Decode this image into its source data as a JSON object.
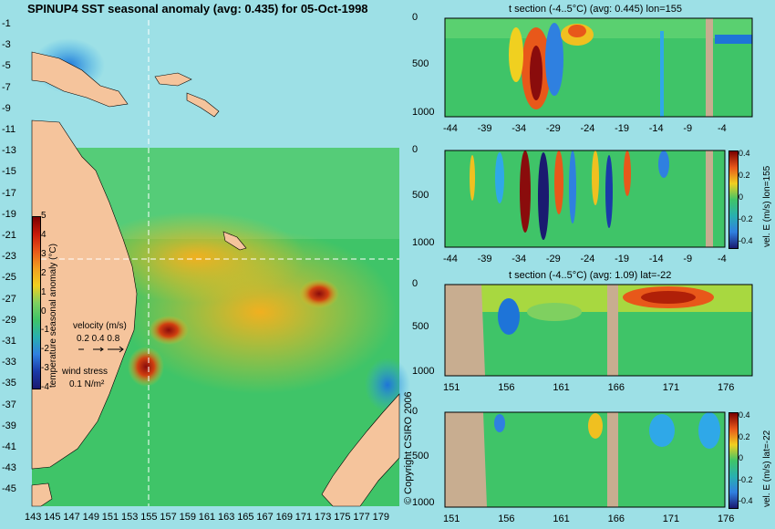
{
  "colors": {
    "background": "#9de0e6",
    "land": "#f5c49c",
    "land_section": "#c8ad90",
    "field_green": "#3fc468",
    "warm": "#f0c020",
    "hot": "#d04010",
    "very_hot": "#8a0c0c",
    "cool": "#2fa8e8",
    "cold": "#1a3aa8"
  },
  "map": {
    "title": "SPINUP4 SST seasonal anomaly (avg: 0.435) for 05-Oct-1998",
    "lat_labels": [
      "-1",
      "-3",
      "-5",
      "-7",
      "-9",
      "-11",
      "-13",
      "-15",
      "-17",
      "-19",
      "-21",
      "-23",
      "-25",
      "-27",
      "-29",
      "-31",
      "-33",
      "-35",
      "-37",
      "-39",
      "-41",
      "-43",
      "-45"
    ],
    "lon_labels": [
      "143",
      "145",
      "147",
      "149",
      "151",
      "153",
      "155",
      "157",
      "159",
      "161",
      "163",
      "165",
      "167",
      "169",
      "171",
      "173",
      "175",
      "177",
      "179"
    ],
    "colorbar_ticks": [
      "5",
      "4",
      "3",
      "2",
      "1",
      "0",
      "-1",
      "-2",
      "-3",
      "-4"
    ],
    "colorbar_label": "temperature seasonal anomaly (°C)",
    "velocity_label": "velocity (m/s)",
    "velocity_scale": "0.2 0.4 0.8",
    "wind_label": "wind stress",
    "wind_scale": "0.1 N/m²",
    "copyright": "© Copyright CSIRO 2006"
  },
  "panels": [
    {
      "title": "t section (-4..5°C) (avg: 0.445) lon=155",
      "y_ticks": [
        "0",
        "500",
        "1000"
      ],
      "x_ticks": [
        "-44",
        "-39",
        "-34",
        "-29",
        "-24",
        "-19",
        "-14",
        "-9",
        "-4"
      ]
    },
    {
      "title": "",
      "y_ticks": [
        "0",
        "500",
        "1000"
      ],
      "x_ticks": [
        "-44",
        "-39",
        "-34",
        "-29",
        "-24",
        "-19",
        "-14",
        "-9",
        "-4"
      ],
      "colorbar_label": "vel. E (m/s) lon=155",
      "colorbar_ticks": [
        "0.4",
        "0.2",
        "0",
        "-0.2",
        "-0.4"
      ]
    },
    {
      "title": "t section (-4..5°C) (avg: 1.09) lat=-22",
      "y_ticks": [
        "0",
        "500",
        "1000"
      ],
      "x_ticks": [
        "151",
        "156",
        "161",
        "166",
        "171",
        "176"
      ]
    },
    {
      "title": "",
      "y_ticks": [
        "0",
        "500",
        "1000"
      ],
      "x_ticks": [
        "151",
        "156",
        "161",
        "166",
        "171",
        "176"
      ],
      "colorbar_label": "vel. E (m/s) lat=-22",
      "colorbar_ticks": [
        "0.4",
        "0.2",
        "0",
        "-0.2",
        "-0.4"
      ]
    }
  ],
  "chart_data": [
    {
      "type": "heatmap",
      "title": "SPINUP4 SST seasonal anomaly (avg: 0.435) for 05-Oct-1998",
      "x": [
        143,
        145,
        147,
        149,
        151,
        153,
        155,
        157,
        159,
        161,
        163,
        165,
        167,
        169,
        171,
        173,
        175,
        177,
        179
      ],
      "y": [
        -1,
        -3,
        -5,
        -7,
        -9,
        -11,
        -13,
        -15,
        -17,
        -19,
        -21,
        -23,
        -25,
        -27,
        -29,
        -31,
        -33,
        -35,
        -37,
        -39,
        -41,
        -43,
        -45
      ],
      "colorbar_label": "temperature seasonal anomaly (°C)",
      "zlim": [
        -4,
        5
      ],
      "average": 0.435,
      "date": "05-Oct-1998",
      "crosshair": {
        "lon": 155,
        "lat": -22
      }
    },
    {
      "type": "heatmap",
      "title": "t section (-4..5°C) (avg: 0.445) lon=155",
      "x": [
        -44,
        -39,
        -34,
        -29,
        -24,
        -19,
        -14,
        -9,
        -4
      ],
      "y": [
        0,
        500,
        1000
      ],
      "zlim": [
        -4,
        5
      ],
      "average": 0.445
    },
    {
      "type": "heatmap",
      "x": [
        -44,
        -39,
        -34,
        -29,
        -24,
        -19,
        -14,
        -9,
        -4
      ],
      "y": [
        0,
        500,
        1000
      ],
      "colorbar_label": "vel. E (m/s) lon=155",
      "zlim": [
        -0.4,
        0.4
      ]
    },
    {
      "type": "heatmap",
      "title": "t section (-4..5°C) (avg: 1.09) lat=-22",
      "x": [
        151,
        156,
        161,
        166,
        171,
        176
      ],
      "y": [
        0,
        500,
        1000
      ],
      "zlim": [
        -4,
        5
      ],
      "average": 1.09
    },
    {
      "type": "heatmap",
      "x": [
        151,
        156,
        161,
        166,
        171,
        176
      ],
      "y": [
        0,
        500,
        1000
      ],
      "colorbar_label": "vel. E (m/s) lat=-22",
      "zlim": [
        -0.4,
        0.4
      ]
    }
  ]
}
